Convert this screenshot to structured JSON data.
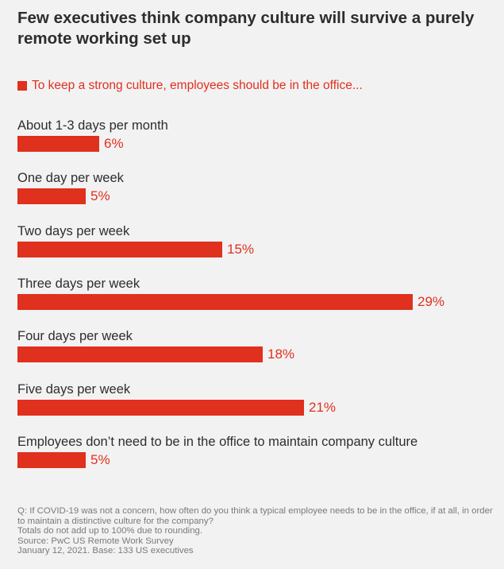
{
  "title": "Few executives think company culture will survive a purely remote working set up",
  "legend": {
    "label": "To keep a strong culture, employees should be in the office...",
    "color": "#e0301e"
  },
  "chart_data": {
    "type": "bar",
    "orientation": "horizontal",
    "title": "Few executives think company culture will survive a purely remote working set up",
    "series": [
      {
        "name": "To keep a strong culture, employees should be in the office...",
        "values": [
          6,
          5,
          15,
          29,
          18,
          21,
          5
        ]
      }
    ],
    "categories": [
      "About 1-3 days per month",
      "One day per week",
      "Two days per week",
      "Three days per week",
      "Four days per week",
      "Five days per week",
      "Employees don’t need to be in the office to maintain company culture"
    ],
    "value_labels": [
      "6%",
      "5%",
      "15%",
      "29%",
      "18%",
      "21%",
      "5%"
    ],
    "unit": "%",
    "xlim": [
      0,
      29
    ],
    "grid": false,
    "legend_position": "top-left",
    "bar_color": "#e0301e"
  },
  "footnote": {
    "question": "Q: If COVID-19 was not a concern, how often do you think a typical employee needs to be in the office, if at all, in order to maintain a distinctive culture for the company?",
    "rounding": "Totals do not add up to 100% due to rounding.",
    "source": "Source: PwC US Remote Work Survey",
    "base": "January 12, 2021. Base: 133 US executives"
  }
}
